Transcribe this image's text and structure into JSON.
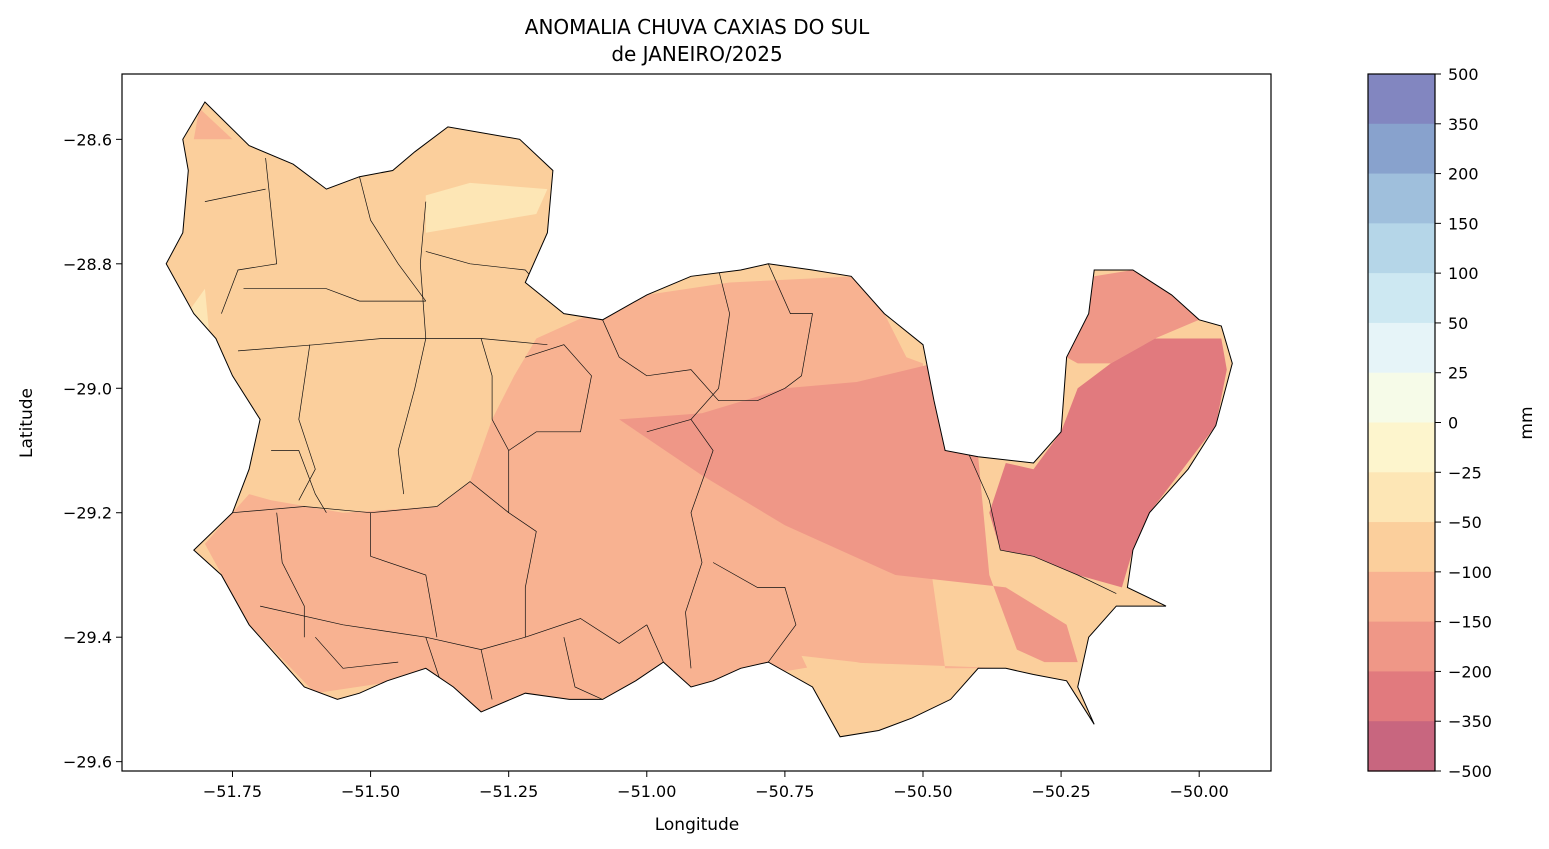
{
  "title": {
    "line1": "ANOMALIA CHUVA CAXIAS DO SUL",
    "line2": "de JANEIRO/2025"
  },
  "axes": {
    "xlabel": "Longitude",
    "ylabel": "Latitude",
    "xlim": [
      -51.95,
      -49.87
    ],
    "ylim": [
      -29.615,
      -28.495
    ],
    "xticks": [
      {
        "value": -51.75,
        "label": "−51.75"
      },
      {
        "value": -51.5,
        "label": "−51.50"
      },
      {
        "value": -51.25,
        "label": "−51.25"
      },
      {
        "value": -51.0,
        "label": "−51.00"
      },
      {
        "value": -50.75,
        "label": "−50.75"
      },
      {
        "value": -50.5,
        "label": "−50.50"
      },
      {
        "value": -50.25,
        "label": "−50.25"
      },
      {
        "value": -50.0,
        "label": "−50.00"
      }
    ],
    "yticks": [
      {
        "value": -28.6,
        "label": "−28.6"
      },
      {
        "value": -28.8,
        "label": "−28.8"
      },
      {
        "value": -29.0,
        "label": "−29.0"
      },
      {
        "value": -29.2,
        "label": "−29.2"
      },
      {
        "value": -29.4,
        "label": "−29.4"
      },
      {
        "value": -29.6,
        "label": "−29.6"
      }
    ]
  },
  "colorbar": {
    "label": "mm",
    "tick_labels": [
      "500",
      "350",
      "200",
      "150",
      "100",
      "50",
      "25",
      "0",
      "−25",
      "−50",
      "−100",
      "−150",
      "−200",
      "−350",
      "−500"
    ],
    "bins": [
      {
        "from": 350,
        "to": 500,
        "color": "#8286c0"
      },
      {
        "from": 200,
        "to": 350,
        "color": "#88a2cd"
      },
      {
        "from": 150,
        "to": 200,
        "color": "#9fbfdc"
      },
      {
        "from": 100,
        "to": 150,
        "color": "#b5d6e8"
      },
      {
        "from": 50,
        "to": 100,
        "color": "#cde8f2"
      },
      {
        "from": 25,
        "to": 50,
        "color": "#e6f4f8"
      },
      {
        "from": 0,
        "to": 25,
        "color": "#f6fbe8"
      },
      {
        "from": -25,
        "to": 0,
        "color": "#fdf5cd"
      },
      {
        "from": -50,
        "to": -25,
        "color": "#fde6b5"
      },
      {
        "from": -100,
        "to": -50,
        "color": "#fbcf9c"
      },
      {
        "from": -150,
        "to": -100,
        "color": "#f8b291"
      },
      {
        "from": -200,
        "to": -150,
        "color": "#ef9787"
      },
      {
        "from": -350,
        "to": -200,
        "color": "#e17a7e"
      },
      {
        "from": -500,
        "to": -350,
        "color": "#c8667f"
      }
    ]
  },
  "map_data": {
    "type": "choropleth_contour",
    "variable": "rainfall anomaly (mm)",
    "region_outline": [
      [
        -51.8,
        -28.54
      ],
      [
        -51.72,
        -28.61
      ],
      [
        -51.64,
        -28.64
      ],
      [
        -51.58,
        -28.68
      ],
      [
        -51.52,
        -28.66
      ],
      [
        -51.46,
        -28.65
      ],
      [
        -51.42,
        -28.62
      ],
      [
        -51.36,
        -28.58
      ],
      [
        -51.23,
        -28.6
      ],
      [
        -51.17,
        -28.65
      ],
      [
        -51.18,
        -28.75
      ],
      [
        -51.22,
        -28.83
      ],
      [
        -51.15,
        -28.88
      ],
      [
        -51.08,
        -28.89
      ],
      [
        -51.0,
        -28.85
      ],
      [
        -50.92,
        -28.82
      ],
      [
        -50.83,
        -28.81
      ],
      [
        -50.78,
        -28.8
      ],
      [
        -50.7,
        -28.81
      ],
      [
        -50.63,
        -28.82
      ],
      [
        -50.57,
        -28.88
      ],
      [
        -50.5,
        -28.93
      ],
      [
        -50.48,
        -29.02
      ],
      [
        -50.46,
        -29.1
      ],
      [
        -50.4,
        -29.11
      ],
      [
        -50.3,
        -29.12
      ],
      [
        -50.25,
        -29.07
      ],
      [
        -50.24,
        -28.95
      ],
      [
        -50.2,
        -28.88
      ],
      [
        -50.19,
        -28.81
      ],
      [
        -50.12,
        -28.81
      ],
      [
        -50.05,
        -28.85
      ],
      [
        -50.0,
        -28.89
      ],
      [
        -49.96,
        -28.9
      ],
      [
        -49.94,
        -28.96
      ],
      [
        -49.97,
        -29.06
      ],
      [
        -50.02,
        -29.13
      ],
      [
        -50.09,
        -29.2
      ],
      [
        -50.12,
        -29.26
      ],
      [
        -50.13,
        -29.32
      ],
      [
        -50.06,
        -29.35
      ],
      [
        -50.15,
        -29.35
      ],
      [
        -50.2,
        -29.4
      ],
      [
        -50.22,
        -29.48
      ],
      [
        -50.19,
        -29.54
      ],
      [
        -50.24,
        -29.47
      ],
      [
        -50.3,
        -29.46
      ],
      [
        -50.35,
        -29.45
      ],
      [
        -50.4,
        -29.45
      ],
      [
        -50.45,
        -29.5
      ],
      [
        -50.52,
        -29.53
      ],
      [
        -50.58,
        -29.55
      ],
      [
        -50.65,
        -29.56
      ],
      [
        -50.7,
        -29.48
      ],
      [
        -50.78,
        -29.44
      ],
      [
        -50.83,
        -29.45
      ],
      [
        -50.88,
        -29.47
      ],
      [
        -50.92,
        -29.48
      ],
      [
        -50.97,
        -29.44
      ],
      [
        -51.02,
        -29.47
      ],
      [
        -51.08,
        -29.5
      ],
      [
        -51.14,
        -29.5
      ],
      [
        -51.22,
        -29.49
      ],
      [
        -51.3,
        -29.52
      ],
      [
        -51.35,
        -29.48
      ],
      [
        -51.4,
        -29.45
      ],
      [
        -51.47,
        -29.47
      ],
      [
        -51.52,
        -29.49
      ],
      [
        -51.56,
        -29.5
      ],
      [
        -51.62,
        -29.48
      ],
      [
        -51.68,
        -29.42
      ],
      [
        -51.72,
        -29.38
      ],
      [
        -51.77,
        -29.3
      ],
      [
        -51.82,
        -29.26
      ],
      [
        -51.75,
        -29.2
      ],
      [
        -51.72,
        -29.13
      ],
      [
        -51.7,
        -29.05
      ],
      [
        -51.75,
        -28.98
      ],
      [
        -51.78,
        -28.92
      ],
      [
        -51.82,
        -28.88
      ],
      [
        -51.87,
        -28.8
      ],
      [
        -51.84,
        -28.75
      ],
      [
        -51.83,
        -28.65
      ],
      [
        -51.84,
        -28.6
      ]
    ],
    "bands": [
      {
        "range": [
          -50,
          -25
        ],
        "polygon": [
          [
            -51.84,
            -28.89
          ],
          [
            -51.8,
            -28.84
          ],
          [
            -51.79,
            -28.93
          ],
          [
            -51.82,
            -28.93
          ]
        ]
      },
      {
        "range": [
          -50,
          -25
        ],
        "polygon": [
          [
            -51.4,
            -28.75
          ],
          [
            -51.2,
            -28.72
          ],
          [
            -51.18,
            -28.68
          ],
          [
            -51.32,
            -28.67
          ],
          [
            -51.4,
            -28.69
          ]
        ]
      },
      {
        "range": [
          -150,
          -100
        ],
        "polygon": [
          [
            -51.82,
            -28.6
          ],
          [
            -51.81,
            -28.55
          ],
          [
            -51.75,
            -28.6
          ]
        ]
      },
      {
        "range": [
          -150,
          -100
        ],
        "polygon": [
          [
            -51.24,
            -28.98
          ],
          [
            -51.2,
            -28.92
          ],
          [
            -51.1,
            -28.88
          ],
          [
            -51.0,
            -28.85
          ],
          [
            -50.85,
            -28.83
          ],
          [
            -50.62,
            -28.82
          ],
          [
            -50.57,
            -28.88
          ],
          [
            -50.53,
            -28.95
          ],
          [
            -50.5,
            -28.96
          ],
          [
            -50.5,
            -29.2
          ],
          [
            -50.46,
            -29.45
          ],
          [
            -50.42,
            -29.45
          ],
          [
            -50.35,
            -29.45
          ],
          [
            -50.65,
            -29.44
          ],
          [
            -50.92,
            -29.48
          ],
          [
            -51.1,
            -29.5
          ],
          [
            -51.3,
            -29.52
          ],
          [
            -51.45,
            -29.47
          ],
          [
            -51.6,
            -29.49
          ],
          [
            -51.72,
            -29.38
          ],
          [
            -51.8,
            -29.25
          ],
          [
            -51.75,
            -29.2
          ],
          [
            -51.72,
            -29.17
          ],
          [
            -51.68,
            -29.18
          ],
          [
            -51.55,
            -29.2
          ],
          [
            -51.38,
            -29.19
          ],
          [
            -51.32,
            -29.15
          ],
          [
            -51.28,
            -29.05
          ]
        ]
      },
      {
        "range": [
          -200,
          -150
        ],
        "polygon": [
          [
            -51.05,
            -29.05
          ],
          [
            -50.9,
            -29.04
          ],
          [
            -50.75,
            -29.0
          ],
          [
            -50.62,
            -28.99
          ],
          [
            -50.48,
            -28.96
          ],
          [
            -50.46,
            -29.1
          ],
          [
            -50.4,
            -29.11
          ],
          [
            -50.38,
            -29.3
          ],
          [
            -50.33,
            -29.42
          ],
          [
            -50.28,
            -29.44
          ],
          [
            -50.22,
            -29.44
          ],
          [
            -50.24,
            -29.38
          ],
          [
            -50.35,
            -29.32
          ],
          [
            -50.55,
            -29.3
          ],
          [
            -50.75,
            -29.22
          ],
          [
            -50.9,
            -29.14
          ]
        ]
      },
      {
        "range": [
          -200,
          -150
        ],
        "polygon": [
          [
            -50.19,
            -28.82
          ],
          [
            -50.12,
            -28.81
          ],
          [
            -50.05,
            -28.85
          ],
          [
            -50.0,
            -28.89
          ],
          [
            -50.08,
            -28.92
          ],
          [
            -50.16,
            -28.96
          ],
          [
            -50.22,
            -28.96
          ],
          [
            -50.24,
            -28.95
          ],
          [
            -50.2,
            -28.88
          ]
        ]
      },
      {
        "range": [
          -350,
          -200
        ],
        "polygon": [
          [
            -50.3,
            -29.13
          ],
          [
            -50.25,
            -29.07
          ],
          [
            -50.22,
            -29.0
          ],
          [
            -50.16,
            -28.96
          ],
          [
            -50.08,
            -28.92
          ],
          [
            -49.96,
            -28.92
          ],
          [
            -49.95,
            -28.97
          ],
          [
            -49.97,
            -29.06
          ],
          [
            -50.03,
            -29.13
          ],
          [
            -50.09,
            -29.2
          ],
          [
            -50.12,
            -29.26
          ],
          [
            -50.14,
            -29.32
          ],
          [
            -50.22,
            -29.3
          ],
          [
            -50.3,
            -29.27
          ],
          [
            -50.36,
            -29.26
          ],
          [
            -50.38,
            -29.2
          ],
          [
            -50.35,
            -29.12
          ]
        ]
      },
      {
        "range": [
          -100,
          -50
        ],
        "polygon": [
          [
            -50.72,
            -29.43
          ],
          [
            -50.65,
            -29.56
          ],
          [
            -50.55,
            -29.53
          ],
          [
            -50.47,
            -29.51
          ],
          [
            -50.45,
            -29.47
          ],
          [
            -50.52,
            -29.46
          ],
          [
            -50.62,
            -29.44
          ]
        ]
      }
    ]
  }
}
